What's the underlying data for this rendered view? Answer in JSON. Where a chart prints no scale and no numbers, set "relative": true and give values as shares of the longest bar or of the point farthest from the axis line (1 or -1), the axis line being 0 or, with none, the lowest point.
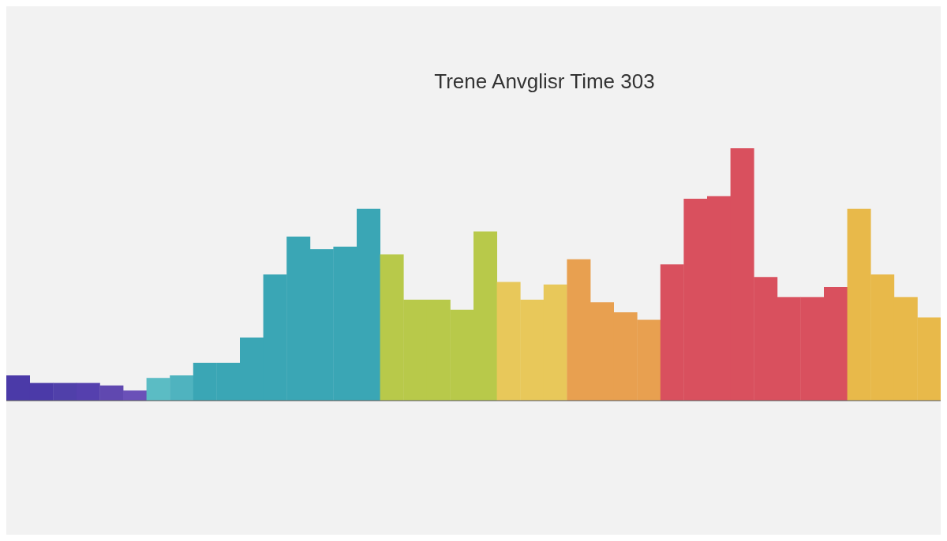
{
  "chart_data": {
    "type": "bar",
    "title": "Trene Anvglisr Time 303",
    "relative": true,
    "categories": [
      null,
      null,
      null,
      null,
      null,
      null,
      null,
      null,
      null,
      null,
      null,
      null,
      null,
      null,
      null,
      null,
      null,
      null,
      null,
      null,
      null,
      null,
      null,
      null,
      null,
      null,
      null,
      null,
      null,
      null,
      null,
      null,
      null,
      null,
      null,
      null,
      null,
      null,
      null,
      null
    ],
    "values": [
      0.1,
      0.07,
      0.07,
      0.07,
      0.06,
      0.04,
      0.09,
      0.1,
      0.15,
      0.15,
      0.25,
      0.5,
      0.65,
      0.6,
      0.61,
      0.76,
      0.58,
      0.4,
      0.4,
      0.36,
      0.67,
      0.47,
      0.4,
      0.46,
      0.56,
      0.39,
      0.35,
      0.32,
      0.54,
      0.8,
      0.81,
      1,
      0.49,
      0.41,
      0.41,
      0.45,
      0.76,
      0.5,
      0.41,
      0.33
    ],
    "colors": [
      "#4b3aa8",
      "#4b3aa8",
      "#5040aa",
      "#5540ae",
      "#6048b0",
      "#6a50b8",
      "#5bbcc4",
      "#4fb3bf",
      "#3aa6b5",
      "#3aa6b5",
      "#3aa6b5",
      "#3aa6b5",
      "#3aa6b5",
      "#3aa6b5",
      "#3aa6b5",
      "#3aa6b5",
      "#b8c94a",
      "#b8c94a",
      "#b8c94a",
      "#b8c94a",
      "#b8c94a",
      "#e8c85a",
      "#e8c85a",
      "#e8c85a",
      "#e8a050",
      "#e8a050",
      "#e8a050",
      "#e8a050",
      "#d9505e",
      "#d9505e",
      "#d9505e",
      "#d9505e",
      "#d9505e",
      "#d9505e",
      "#d9505e",
      "#d9505e",
      "#e8b94a",
      "#e8b94a",
      "#e8b94a",
      "#e8b94a"
    ]
  }
}
